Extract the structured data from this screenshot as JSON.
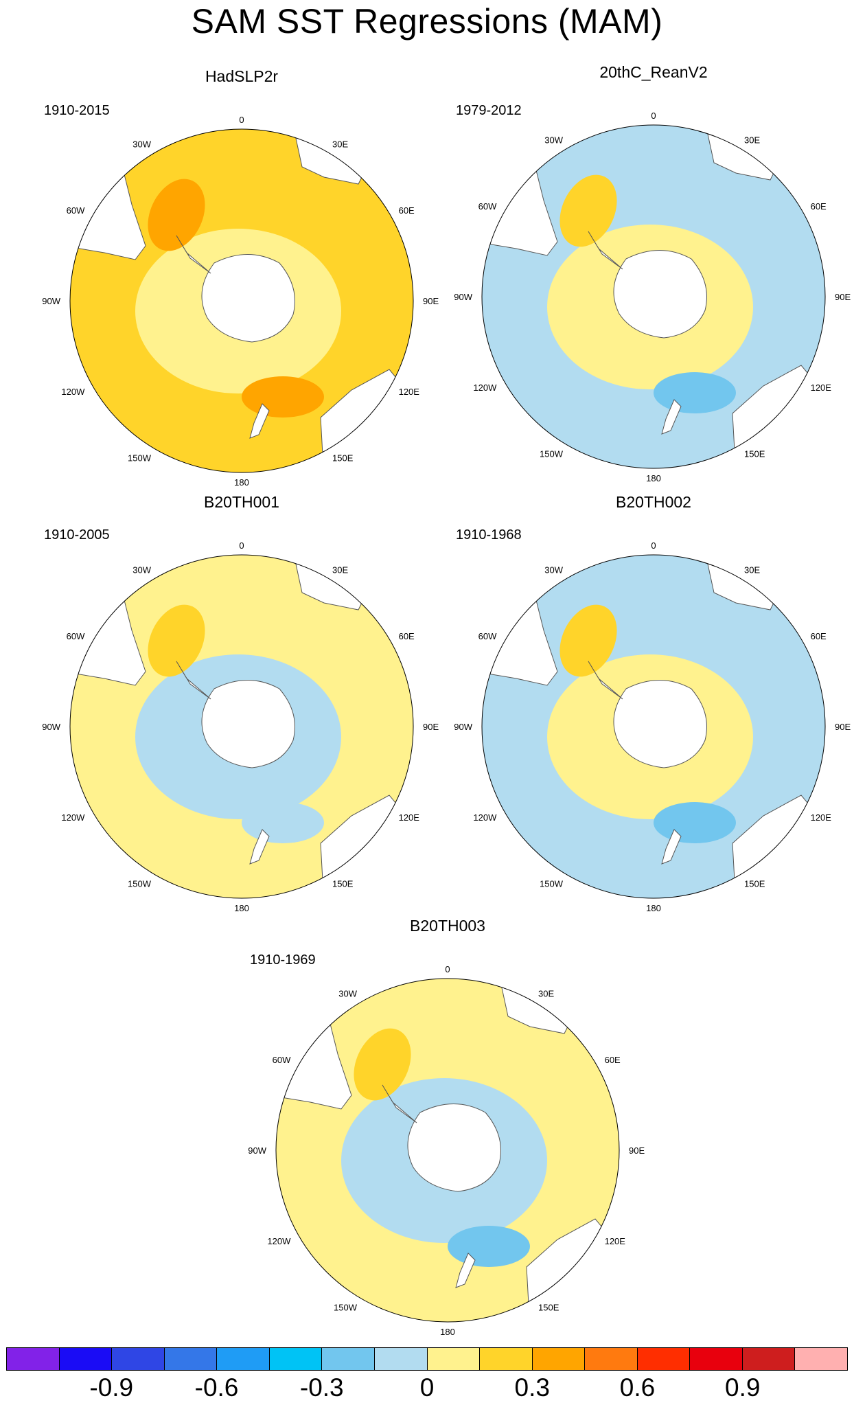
{
  "title": "SAM SST Regressions (MAM)",
  "colors": {
    "land": "#ffffff",
    "coast": "#555555",
    "border": "#000000"
  },
  "map_labels": {
    "lon_0": "0",
    "lon_30e": "30E",
    "lon_60e": "60E",
    "lon_90e": "90E",
    "lon_120e": "120E",
    "lon_150e": "150E",
    "lon_180": "180",
    "lon_150w": "150W",
    "lon_120w": "120W",
    "lon_90w": "90W",
    "lon_60w": "60W",
    "lon_30w": "30W"
  },
  "panels": [
    {
      "id": "hadslp2r",
      "title": "HadSLP2r",
      "period": "1910-2015",
      "base_color": "#ffd42a",
      "inner_color": "#fff28e",
      "patch_colors": [
        "#ffa500",
        "#ffa500"
      ]
    },
    {
      "id": "20thc",
      "title": "20thC_ReanV2",
      "period": "1979-2012",
      "base_color": "#b2dcf0",
      "inner_color": "#fff28e",
      "patch_colors": [
        "#ffd42a",
        "#72c6ee"
      ]
    },
    {
      "id": "b20th001",
      "title": "B20TH001",
      "period": "1910-2005",
      "base_color": "#fff28e",
      "inner_color": "#b2dcf0",
      "patch_colors": [
        "#ffd42a",
        "#b2dcf0"
      ]
    },
    {
      "id": "b20th002",
      "title": "B20TH002",
      "period": "1910-1968",
      "base_color": "#b2dcf0",
      "inner_color": "#fff28e",
      "patch_colors": [
        "#ffd42a",
        "#72c6ee"
      ]
    },
    {
      "id": "b20th003",
      "title": "B20TH003",
      "period": "1910-1969",
      "base_color": "#fff28e",
      "inner_color": "#b2dcf0",
      "patch_colors": [
        "#ffd42a",
        "#72c6ee"
      ]
    }
  ],
  "colorbar": {
    "colors": [
      "#8222e8",
      "#1a0cf5",
      "#2f46e5",
      "#3477e8",
      "#1f9cf5",
      "#00c3f5",
      "#72c6ee",
      "#b2dcf0",
      "#fff28e",
      "#ffd42a",
      "#ffa500",
      "#ff7a0f",
      "#ff2e00",
      "#e8000d",
      "#ce1e1e",
      "#ffb0b0"
    ],
    "labels": [
      "-0.9",
      "-0.6",
      "-0.3",
      "0",
      "0.3",
      "0.6",
      "0.9"
    ]
  }
}
